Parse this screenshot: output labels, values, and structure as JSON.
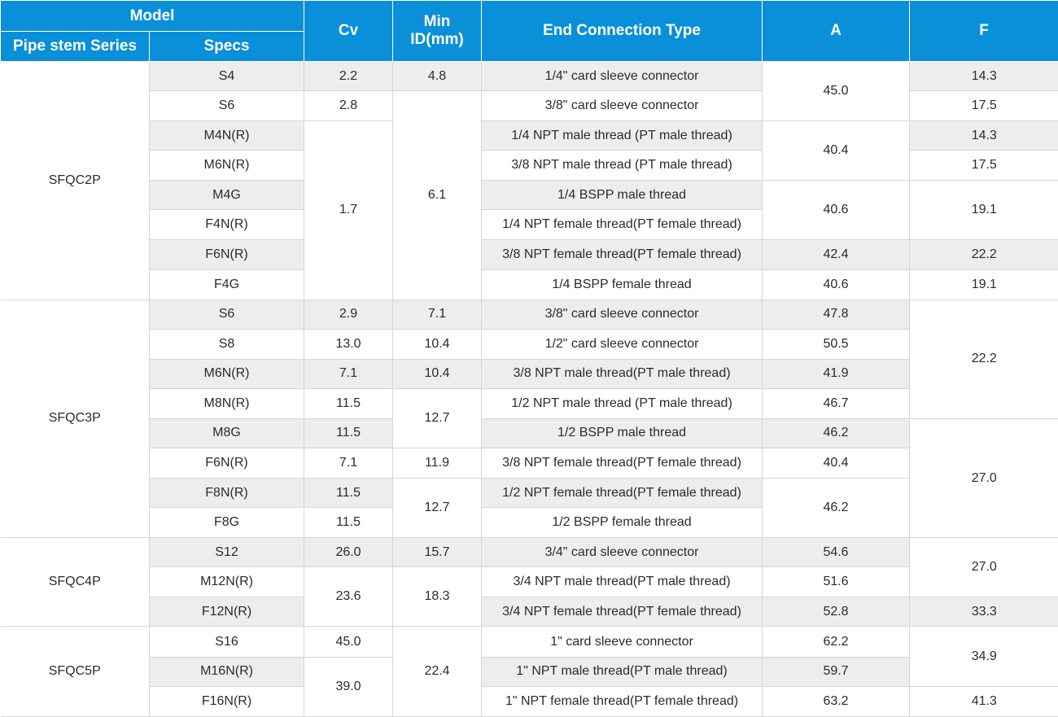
{
  "header": {
    "model": "Model",
    "series": "Pipe stem Series",
    "specs": "Specs",
    "cv": "Cv",
    "min_id": "Min ID(mm)",
    "end_type": "End Connection Type",
    "a": "A",
    "f": "F"
  },
  "groups": [
    {
      "series": "SFQC2P",
      "rows": [
        {
          "spec": "S4",
          "cv": "2.2",
          "min_id": "4.8",
          "end": "1/4\" card sleeve connector",
          "a": "45.0",
          "f": "14.3"
        },
        {
          "spec": "S6",
          "cv": "2.8",
          "min_id": "6.1",
          "end": "3/8\" card sleeve connector",
          "a": "",
          "f": "17.5"
        },
        {
          "spec": "M4N(R)",
          "cv": "1.7",
          "min_id": "",
          "end": "1/4 NPT male thread (PT male thread)",
          "a": "40.4",
          "f": "14.3"
        },
        {
          "spec": "M6N(R)",
          "cv": "",
          "min_id": "",
          "end": "3/8 NPT male thread (PT male thread)",
          "a": "",
          "f": "17.5"
        },
        {
          "spec": "M4G",
          "cv": "",
          "min_id": "",
          "end": "1/4 BSPP male thread",
          "a": "40.6",
          "f": "19.1"
        },
        {
          "spec": "F4N(R)",
          "cv": "",
          "min_id": "",
          "end": "1/4 NPT female thread(PT female thread)",
          "a": "",
          "f": ""
        },
        {
          "spec": "F6N(R)",
          "cv": "",
          "min_id": "",
          "end": "3/8 NPT female thread(PT female thread)",
          "a": "42.4",
          "f": "22.2"
        },
        {
          "spec": "F4G",
          "cv": "",
          "min_id": "",
          "end": "1/4 BSPP female thread",
          "a": "40.6",
          "f": "19.1"
        }
      ]
    },
    {
      "series": "SFQC3P",
      "rows": [
        {
          "spec": "S6",
          "cv": "2.9",
          "min_id": "7.1",
          "end": "3/8\" card sleeve connector",
          "a": "47.8",
          "f": "22.2"
        },
        {
          "spec": "S8",
          "cv": "13.0",
          "min_id": "10.4",
          "end": "1/2\" card sleeve connector",
          "a": "50.5",
          "f": ""
        },
        {
          "spec": "M6N(R)",
          "cv": "7.1",
          "min_id": "10.4",
          "end": "3/8 NPT male thread(PT male thread)",
          "a": "41.9",
          "f": ""
        },
        {
          "spec": "M8N(R)",
          "cv": "11.5",
          "min_id": "12.7",
          "end": "1/2 NPT male thread (PT male thread)",
          "a": "46.7",
          "f": ""
        },
        {
          "spec": "M8G",
          "cv": "11.5",
          "min_id": "",
          "end": "1/2 BSPP male thread",
          "a": "46.2",
          "f": "27.0"
        },
        {
          "spec": "F6N(R)",
          "cv": "7.1",
          "min_id": "11.9",
          "end": "3/8 NPT female thread(PT female thread)",
          "a": "40.4",
          "f": ""
        },
        {
          "spec": "F8N(R)",
          "cv": "11.5",
          "min_id": "12.7",
          "end": "1/2 NPT female thread(PT female thread)",
          "a": "46.2",
          "f": ""
        },
        {
          "spec": "F8G",
          "cv": "11.5",
          "min_id": "",
          "end": "1/2 BSPP female thread",
          "a": "",
          "f": ""
        }
      ]
    },
    {
      "series": "SFQC4P",
      "rows": [
        {
          "spec": "S12",
          "cv": "26.0",
          "min_id": "15.7",
          "end": "3/4\" card sleeve connector",
          "a": "54.6",
          "f": "27.0"
        },
        {
          "spec": "M12N(R)",
          "cv": "23.6",
          "min_id": "18.3",
          "end": "3/4 NPT male thread(PT male thread)",
          "a": "51.6",
          "f": ""
        },
        {
          "spec": "F12N(R)",
          "cv": "",
          "min_id": "",
          "end": "3/4 NPT female thread(PT female thread)",
          "a": "52.8",
          "f": "33.3"
        }
      ]
    },
    {
      "series": "SFQC5P",
      "rows": [
        {
          "spec": "S16",
          "cv": "45.0",
          "min_id": "22.4",
          "end": "1\" card sleeve connector",
          "a": "62.2",
          "f": "34.9"
        },
        {
          "spec": "M16N(R)",
          "cv": "39.0",
          "min_id": "",
          "end": "1\" NPT male thread(PT male thread)",
          "a": "59.7",
          "f": ""
        },
        {
          "spec": "F16N(R)",
          "cv": "",
          "min_id": "",
          "end": "1\" NPT female thread(PT female thread)",
          "a": "63.2",
          "f": "41.3"
        }
      ]
    }
  ]
}
